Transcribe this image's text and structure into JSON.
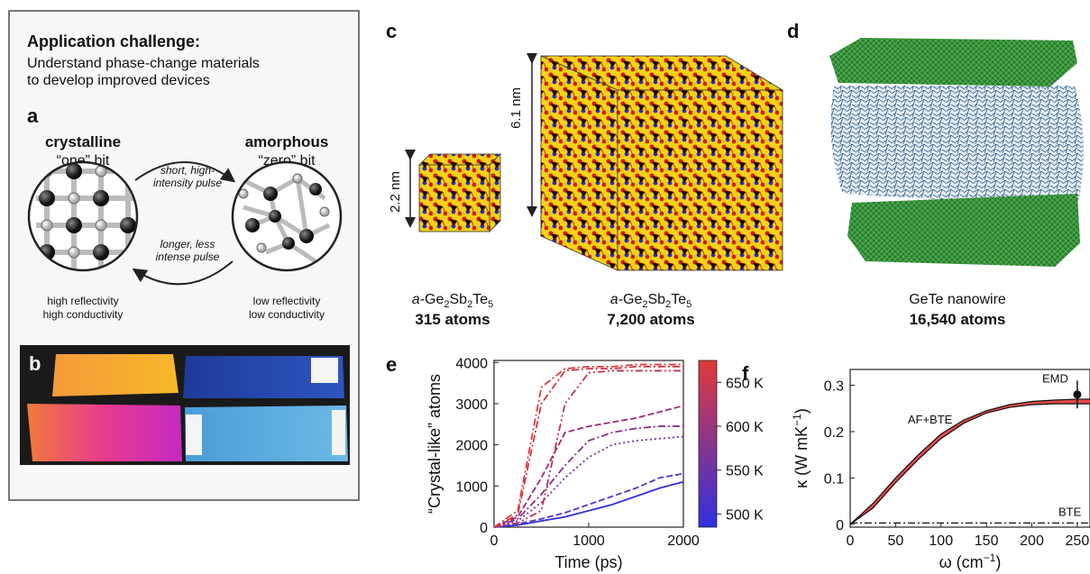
{
  "panel_a": {
    "box_title": "Application challenge:",
    "box_subtitle": [
      "Understand phase-change materials",
      "to develop improved devices"
    ],
    "label": "a",
    "crystalline": {
      "title": "crystalline",
      "bit": "“one” bit",
      "props": [
        "high reflectivity",
        "high conductivity"
      ]
    },
    "amorphous": {
      "title": "amorphous",
      "bit": "“zero” bit",
      "props": [
        "low reflectivity",
        "low conductivity"
      ]
    },
    "arrow_top": [
      "short, high-",
      "intensity pulse"
    ],
    "arrow_bottom": [
      "longer, less",
      "intense pulse"
    ]
  },
  "panel_b": {
    "label": "b"
  },
  "panel_c": {
    "label": "c",
    "small": {
      "size": "2.2 nm",
      "material": [
        "a",
        "-Ge",
        "2",
        "Sb",
        "2",
        "Te",
        "5"
      ],
      "atoms": "315 atoms"
    },
    "large": {
      "size": "6.1 nm",
      "material": [
        "a",
        "-Ge",
        "2",
        "Sb",
        "2",
        "Te",
        "5"
      ],
      "atoms": "7,200 atoms"
    }
  },
  "panel_d": {
    "label": "d",
    "name": "GeTe nanowire",
    "atoms": "16,540 atoms"
  },
  "chart_data": [
    {
      "type": "line",
      "panel_label": "e",
      "xlabel": "Time (ps)",
      "ylabel": "“Crystal-like” atoms",
      "x": [
        0,
        250,
        500,
        750,
        1000,
        1250,
        1500,
        1750,
        2000
      ],
      "xlim": [
        0,
        2000
      ],
      "xticks": [
        0,
        1000,
        2000
      ],
      "ylim": [
        0,
        4050
      ],
      "yticks": [
        0,
        1000,
        2000,
        3000,
        4000
      ],
      "series": [
        {
          "color": "#3030e0",
          "dash": "solid",
          "values": [
            0,
            50,
            150,
            250,
            400,
            550,
            750,
            950,
            1100
          ]
        },
        {
          "color": "#5a34c8",
          "dash": "dashed",
          "values": [
            0,
            80,
            200,
            350,
            550,
            750,
            950,
            1200,
            1300
          ]
        },
        {
          "color": "#7a30a8",
          "dash": "dotted",
          "values": [
            0,
            150,
            600,
            1200,
            1700,
            2000,
            2100,
            2150,
            2200
          ]
        },
        {
          "color": "#8c2c90",
          "dash": "dashdot",
          "values": [
            0,
            200,
            800,
            1500,
            2100,
            2300,
            2400,
            2450,
            2450
          ]
        },
        {
          "color": "#9c2878",
          "dash": "dashed",
          "values": [
            0,
            250,
            1200,
            2300,
            2450,
            2550,
            2650,
            2800,
            2950
          ]
        },
        {
          "color": "#c0304c",
          "dash": "dashdotdot",
          "values": [
            0,
            100,
            400,
            3000,
            3750,
            3800,
            3800,
            3800,
            3800
          ]
        },
        {
          "color": "#d0343f",
          "dash": "dashdot",
          "values": [
            0,
            300,
            3000,
            3800,
            3850,
            3850,
            3900,
            3900,
            3900
          ]
        },
        {
          "color": "#e03a3a",
          "dash": "dashdot",
          "values": [
            0,
            400,
            3400,
            3850,
            3900,
            3900,
            3950,
            3950,
            3950
          ]
        }
      ],
      "colorbar": {
        "lim": [
          485,
          675
        ],
        "colors": [
          "#3030e0",
          "#e03a3a"
        ],
        "ticks": [
          {
            "value": 500,
            "label": "500 K"
          },
          {
            "value": 550,
            "label": "550 K"
          },
          {
            "value": 600,
            "label": "600 K"
          },
          {
            "value": 650,
            "label": "650 K"
          }
        ]
      }
    },
    {
      "type": "band",
      "panel_label": "f",
      "xlabel": {
        "text": "ω (cm",
        "sup": "−1",
        "end": ")"
      },
      "ylabel": {
        "text": "κ (W mK",
        "sup": "−1",
        "end": ")"
      },
      "x": [
        0,
        25,
        50,
        75,
        100,
        125,
        150,
        175,
        200,
        225,
        250,
        264
      ],
      "xlim": [
        0,
        264
      ],
      "xticks": [
        0,
        50,
        100,
        150,
        200,
        250
      ],
      "ylim": [
        -0.006,
        0.334
      ],
      "yticks": [
        0,
        0.1,
        0.2,
        0.3
      ],
      "series": [
        {
          "name": "AF+BTE",
          "color": "#e04848",
          "high": [
            0,
            0.045,
            0.1,
            0.15,
            0.195,
            0.225,
            0.245,
            0.258,
            0.265,
            0.268,
            0.27,
            0.27
          ],
          "low": [
            0,
            0.035,
            0.09,
            0.14,
            0.185,
            0.218,
            0.24,
            0.252,
            0.258,
            0.26,
            0.26,
            0.26
          ]
        },
        {
          "name": "BTE",
          "color": "#111111",
          "dash": "dashdot",
          "values": [
            0.003,
            0.003,
            0.003,
            0.003,
            0.003,
            0.003,
            0.003,
            0.003,
            0.003,
            0.003,
            0.003,
            0.003
          ]
        },
        {
          "name": "EMD",
          "color": "#111111",
          "x": [
            250
          ],
          "values": [
            0.28
          ],
          "errors": [
            0.03
          ]
        }
      ]
    }
  ]
}
